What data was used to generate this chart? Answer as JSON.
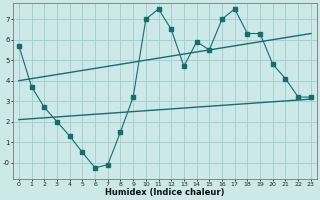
{
  "title": "",
  "xlabel": "Humidex (Indice chaleur)",
  "bg_color": "#cce8e8",
  "grid_color": "#a8d0d0",
  "line_color": "#1a6b6b",
  "xlim": [
    -0.5,
    23.5
  ],
  "ylim": [
    -0.8,
    7.8
  ],
  "yticks": [
    0,
    1,
    2,
    3,
    4,
    5,
    6,
    7
  ],
  "ytick_labels": [
    "-0",
    "1",
    "2",
    "3",
    "4",
    "5",
    "6",
    "7"
  ],
  "xticks": [
    0,
    1,
    2,
    3,
    4,
    5,
    6,
    7,
    8,
    9,
    10,
    11,
    12,
    13,
    14,
    15,
    16,
    17,
    18,
    19,
    20,
    21,
    22,
    23
  ],
  "line1_x": [
    0,
    1,
    2,
    3,
    4,
    5,
    6,
    7,
    8,
    9,
    10,
    11,
    12,
    13,
    14,
    15,
    16,
    17,
    18,
    19,
    20,
    21,
    22,
    23
  ],
  "line1_y": [
    5.7,
    3.7,
    2.7,
    2.0,
    1.3,
    0.5,
    -0.25,
    -0.1,
    1.5,
    3.2,
    7.0,
    7.5,
    6.5,
    4.7,
    5.9,
    5.5,
    7.0,
    7.5,
    6.3,
    6.3,
    4.8,
    4.1,
    3.2,
    3.2
  ],
  "line2_x": [
    0,
    23
  ],
  "line2_y": [
    4.0,
    6.3
  ],
  "line3_x": [
    0,
    23
  ],
  "line3_y": [
    2.1,
    3.1
  ]
}
